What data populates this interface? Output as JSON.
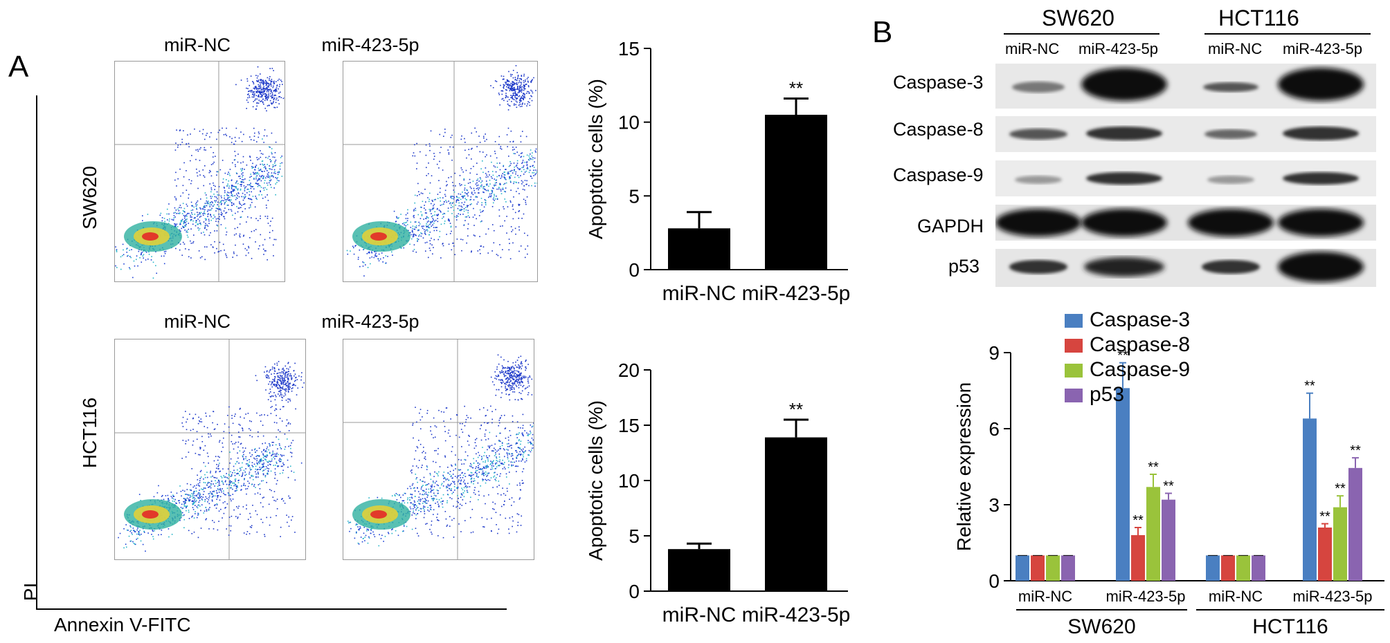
{
  "panel_a": {
    "letter": "A",
    "flow": {
      "y_axis_label": "PI",
      "x_axis_label": "Annexin V-FITC",
      "rows": [
        {
          "label": "SW620",
          "titles": [
            "miR-NC",
            "miR-423-5p"
          ]
        },
        {
          "label": "HCT116",
          "titles": [
            "miR-NC",
            "miR-423-5p"
          ]
        }
      ]
    }
  },
  "panel_b": {
    "letter": "B",
    "blot": {
      "groups": [
        "SW620",
        "HCT116"
      ],
      "lanes": [
        "miR-NC",
        "miR-423-5p",
        "miR-NC",
        "miR-423-5p"
      ],
      "proteins": [
        "Caspase-3",
        "Caspase-8",
        "Caspase-9",
        "GAPDH",
        "p53"
      ]
    }
  },
  "colors": {
    "caspase3": "#4a7fc1",
    "caspase8": "#d6453f",
    "caspase9": "#9ac33b",
    "p53": "#8a64b0",
    "bar": "#000000"
  },
  "chart_data": [
    {
      "type": "bar",
      "categories": [
        "miR-NC",
        "miR-423-5p"
      ],
      "values": [
        2.8,
        10.5
      ],
      "errors": [
        1.1,
        1.1
      ],
      "annotations": [
        "",
        "**"
      ],
      "ylabel": "Apoptotic cells (%)",
      "ylim": [
        0,
        15
      ],
      "yticks": [
        0,
        5,
        10,
        15
      ]
    },
    {
      "type": "bar",
      "categories": [
        "miR-NC",
        "miR-423-5p"
      ],
      "values": [
        3.8,
        13.9
      ],
      "errors": [
        0.5,
        1.6
      ],
      "annotations": [
        "",
        "**"
      ],
      "ylabel": "Apoptotic cells (%)",
      "ylim": [
        0,
        20
      ],
      "yticks": [
        0,
        5,
        10,
        15,
        20
      ]
    },
    {
      "type": "bar",
      "categories": [
        "miR-NC",
        "miR-423-5p",
        "miR-NC",
        "miR-423-5p"
      ],
      "groups": [
        "SW620",
        "HCT116"
      ],
      "ylabel": "Relative expression",
      "ylim": [
        0,
        9
      ],
      "yticks": [
        0,
        3,
        6,
        9
      ],
      "legend_position": "top",
      "series": [
        {
          "name": "Caspase-3",
          "values": [
            1,
            7.6,
            1,
            6.4
          ],
          "errors": [
            0,
            1.0,
            0,
            1.0
          ],
          "annotations": [
            "",
            "**",
            "",
            "**"
          ]
        },
        {
          "name": "Caspase-8",
          "values": [
            1,
            1.8,
            1,
            2.1
          ],
          "errors": [
            0,
            0.3,
            0,
            0.15
          ],
          "annotations": [
            "",
            "**",
            "",
            "**"
          ]
        },
        {
          "name": "Caspase-9",
          "values": [
            1,
            3.7,
            1,
            2.9
          ],
          "errors": [
            0,
            0.5,
            0,
            0.45
          ],
          "annotations": [
            "",
            "**",
            "",
            "**"
          ]
        },
        {
          "name": "p53",
          "values": [
            1,
            3.2,
            1,
            4.45
          ],
          "errors": [
            0,
            0.25,
            0,
            0.4
          ],
          "annotations": [
            "",
            "**",
            "",
            "**"
          ]
        }
      ]
    }
  ]
}
